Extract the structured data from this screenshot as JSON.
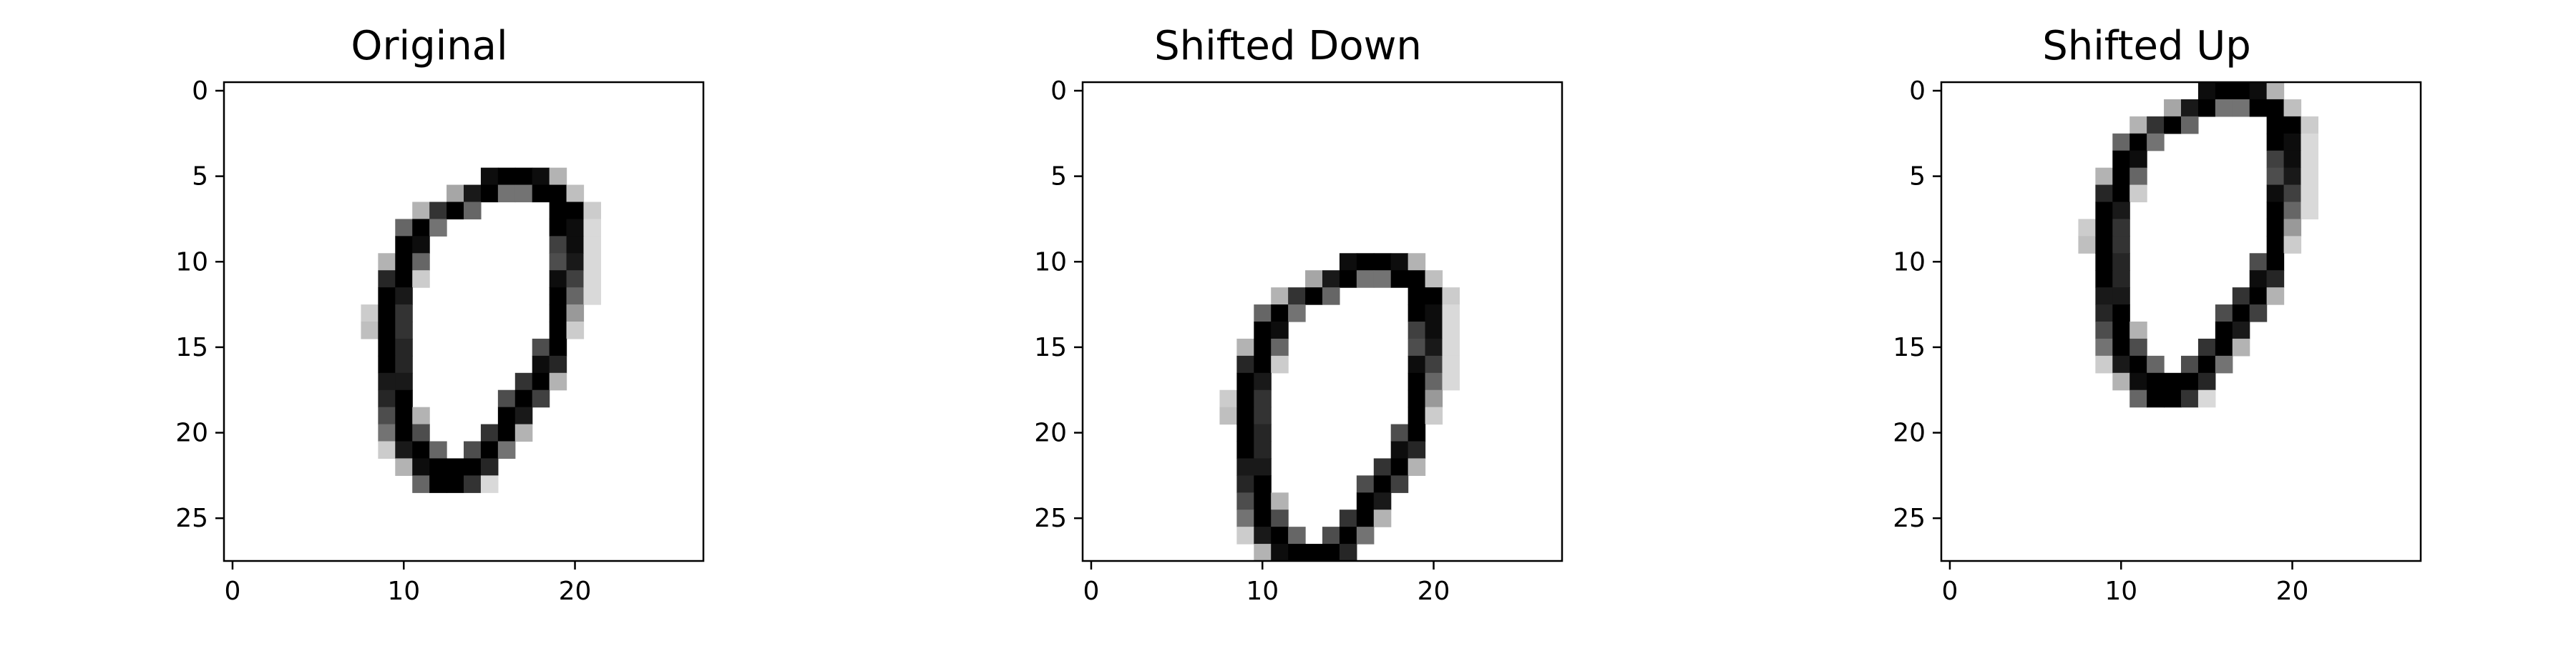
{
  "chart_data": [
    {
      "type": "heatmap",
      "title": "Original",
      "colormap": "binary",
      "shape": [
        28,
        28
      ],
      "x_ticks": [
        0,
        10,
        20
      ],
      "y_ticks": [
        0,
        5,
        10,
        15,
        20,
        25
      ],
      "xlim": [
        -0.5,
        27.5
      ],
      "ylim": [
        27.5,
        -0.5
      ],
      "shift_rows": 0
    },
    {
      "type": "heatmap",
      "title": "Shifted Down",
      "colormap": "binary",
      "shape": [
        28,
        28
      ],
      "x_ticks": [
        0,
        10,
        20
      ],
      "y_ticks": [
        0,
        5,
        10,
        15,
        20,
        25
      ],
      "xlim": [
        -0.5,
        27.5
      ],
      "ylim": [
        27.5,
        -0.5
      ],
      "shift_rows": 5
    },
    {
      "type": "heatmap",
      "title": "Shifted Up",
      "colormap": "binary",
      "shape": [
        28,
        28
      ],
      "x_ticks": [
        0,
        10,
        20
      ],
      "y_ticks": [
        0,
        5,
        10,
        15,
        20,
        25
      ],
      "xlim": [
        -0.5,
        27.5
      ],
      "ylim": [
        27.5,
        -0.5
      ],
      "shift_rows": -5
    }
  ],
  "digit_pixels": [
    [
      5,
      15,
      0.95
    ],
    [
      5,
      16,
      1.0
    ],
    [
      5,
      17,
      1.0
    ],
    [
      5,
      18,
      0.95
    ],
    [
      5,
      19,
      0.3
    ],
    [
      6,
      13,
      0.35
    ],
    [
      6,
      14,
      0.9
    ],
    [
      6,
      15,
      1.0
    ],
    [
      6,
      16,
      0.55
    ],
    [
      6,
      17,
      0.55
    ],
    [
      6,
      18,
      1.0
    ],
    [
      6,
      19,
      1.0
    ],
    [
      6,
      20,
      0.25
    ],
    [
      7,
      11,
      0.3
    ],
    [
      7,
      12,
      0.8
    ],
    [
      7,
      13,
      1.0
    ],
    [
      7,
      14,
      0.6
    ],
    [
      7,
      19,
      1.0
    ],
    [
      7,
      20,
      1.0
    ],
    [
      7,
      21,
      0.2
    ],
    [
      8,
      10,
      0.6
    ],
    [
      8,
      11,
      1.0
    ],
    [
      8,
      12,
      0.55
    ],
    [
      8,
      19,
      1.0
    ],
    [
      8,
      20,
      0.95
    ],
    [
      8,
      21,
      0.15
    ],
    [
      9,
      10,
      1.0
    ],
    [
      9,
      11,
      0.95
    ],
    [
      9,
      19,
      0.75
    ],
    [
      9,
      20,
      0.95
    ],
    [
      9,
      21,
      0.15
    ],
    [
      10,
      9,
      0.3
    ],
    [
      10,
      10,
      1.0
    ],
    [
      10,
      11,
      0.6
    ],
    [
      10,
      19,
      0.7
    ],
    [
      10,
      20,
      0.9
    ],
    [
      10,
      21,
      0.15
    ],
    [
      11,
      9,
      0.85
    ],
    [
      11,
      10,
      1.0
    ],
    [
      11,
      11,
      0.2
    ],
    [
      11,
      19,
      0.95
    ],
    [
      11,
      20,
      0.75
    ],
    [
      11,
      21,
      0.15
    ],
    [
      12,
      9,
      1.0
    ],
    [
      12,
      10,
      0.9
    ],
    [
      12,
      19,
      1.0
    ],
    [
      12,
      20,
      0.6
    ],
    [
      12,
      21,
      0.15
    ],
    [
      13,
      8,
      0.2
    ],
    [
      13,
      9,
      1.0
    ],
    [
      13,
      10,
      0.8
    ],
    [
      13,
      19,
      1.0
    ],
    [
      13,
      20,
      0.4
    ],
    [
      14,
      8,
      0.25
    ],
    [
      14,
      9,
      1.0
    ],
    [
      14,
      10,
      0.8
    ],
    [
      14,
      19,
      1.0
    ],
    [
      14,
      20,
      0.2
    ],
    [
      15,
      9,
      1.0
    ],
    [
      15,
      10,
      0.85
    ],
    [
      15,
      18,
      0.7
    ],
    [
      15,
      19,
      1.0
    ],
    [
      16,
      9,
      1.0
    ],
    [
      16,
      10,
      0.85
    ],
    [
      16,
      18,
      0.95
    ],
    [
      16,
      19,
      0.85
    ],
    [
      17,
      9,
      0.9
    ],
    [
      17,
      10,
      0.9
    ],
    [
      17,
      17,
      0.8
    ],
    [
      17,
      18,
      1.0
    ],
    [
      17,
      19,
      0.3
    ],
    [
      18,
      9,
      0.85
    ],
    [
      18,
      10,
      1.0
    ],
    [
      18,
      16,
      0.7
    ],
    [
      18,
      17,
      1.0
    ],
    [
      18,
      18,
      0.75
    ],
    [
      19,
      9,
      0.7
    ],
    [
      19,
      10,
      1.0
    ],
    [
      19,
      11,
      0.3
    ],
    [
      19,
      16,
      1.0
    ],
    [
      19,
      17,
      0.9
    ],
    [
      20,
      9,
      0.55
    ],
    [
      20,
      10,
      1.0
    ],
    [
      20,
      11,
      0.7
    ],
    [
      20,
      15,
      0.8
    ],
    [
      20,
      16,
      1.0
    ],
    [
      20,
      17,
      0.3
    ],
    [
      21,
      9,
      0.2
    ],
    [
      21,
      10,
      0.9
    ],
    [
      21,
      11,
      1.0
    ],
    [
      21,
      12,
      0.6
    ],
    [
      21,
      14,
      0.7
    ],
    [
      21,
      15,
      1.0
    ],
    [
      21,
      16,
      0.55
    ],
    [
      22,
      10,
      0.3
    ],
    [
      22,
      11,
      0.95
    ],
    [
      22,
      12,
      1.0
    ],
    [
      22,
      13,
      1.0
    ],
    [
      22,
      14,
      1.0
    ],
    [
      22,
      15,
      0.85
    ],
    [
      23,
      11,
      0.6
    ],
    [
      23,
      12,
      1.0
    ],
    [
      23,
      13,
      1.0
    ],
    [
      23,
      14,
      0.8
    ],
    [
      23,
      15,
      0.15
    ]
  ]
}
